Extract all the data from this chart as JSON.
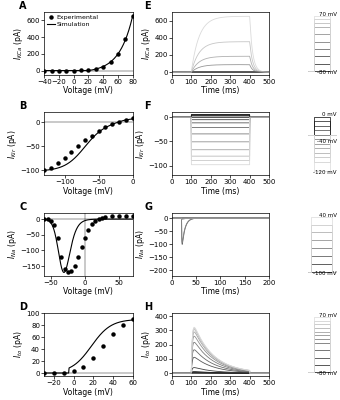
{
  "A": {
    "xlabel": "Voltage (mV)",
    "ylabel": "$I_{KCa}$ (pA)",
    "xlim": [
      -40,
      80
    ],
    "ylim": [
      -50,
      700
    ],
    "yticks": [
      0,
      200,
      400,
      600
    ],
    "xticks": [
      -40,
      -20,
      0,
      20,
      40,
      60,
      80
    ],
    "exp_x": [
      -40,
      -30,
      -20,
      -10,
      0,
      10,
      20,
      30,
      40,
      50,
      60,
      70,
      80
    ],
    "exp_y": [
      0,
      0,
      0,
      0,
      0,
      2,
      5,
      15,
      40,
      100,
      200,
      380,
      650
    ]
  },
  "B": {
    "xlabel": "Voltage (mV)",
    "ylabel": "$I_{Kir}$ (pA)",
    "xlim": [
      -130,
      0
    ],
    "ylim": [
      -110,
      20
    ],
    "yticks": [
      -100,
      -50,
      0
    ],
    "xticks": [
      -100,
      -50,
      0
    ],
    "exp_x": [
      -130,
      -120,
      -110,
      -100,
      -90,
      -80,
      -70,
      -60,
      -50,
      -40,
      -30,
      -20,
      -10,
      0
    ],
    "exp_y": [
      -100,
      -95,
      -85,
      -75,
      -62,
      -50,
      -38,
      -28,
      -18,
      -10,
      -4,
      0,
      5,
      8
    ]
  },
  "C": {
    "xlabel": "Voltage (mV)",
    "ylabel": "$I_{Na}$ (pA)",
    "xlim": [
      -60,
      70
    ],
    "ylim": [
      -180,
      20
    ],
    "yticks": [
      -150,
      -100,
      -50,
      0
    ],
    "xticks": [
      -50,
      0,
      50
    ],
    "exp_x": [
      -60,
      -55,
      -50,
      -45,
      -40,
      -35,
      -30,
      -25,
      -20,
      -15,
      -10,
      -5,
      0,
      5,
      10,
      15,
      20,
      25,
      30,
      40,
      50,
      60,
      70
    ],
    "exp_y": [
      0,
      0,
      -5,
      -20,
      -60,
      -120,
      -160,
      -170,
      -165,
      -150,
      -120,
      -90,
      -60,
      -35,
      -15,
      -5,
      0,
      5,
      8,
      10,
      10,
      10,
      10
    ]
  },
  "D": {
    "xlabel": "Voltage (mV)",
    "ylabel": "$I_{to}$ (pA)",
    "xlim": [
      -30,
      60
    ],
    "ylim": [
      -5,
      100
    ],
    "yticks": [
      0,
      20,
      40,
      60,
      80,
      100
    ],
    "xticks": [
      -20,
      0,
      20,
      40,
      60
    ],
    "exp_x": [
      -30,
      -20,
      -10,
      0,
      10,
      20,
      30,
      40,
      50,
      60
    ],
    "exp_y": [
      0,
      0,
      0,
      3,
      10,
      25,
      45,
      65,
      80,
      90
    ]
  },
  "E": {
    "xlabel": "Time (ms)",
    "ylabel": "$I_{KCa}$ (pA)",
    "xlim": [
      0,
      500
    ],
    "ylim": [
      -30,
      700
    ],
    "yticks": [
      0,
      200,
      400,
      600
    ],
    "xticks": [
      0,
      100,
      200,
      300,
      400,
      500
    ],
    "pulse_start": 100,
    "pulse_end": 400,
    "voltage_steps": [
      -80,
      -60,
      -40,
      -20,
      0,
      20,
      40,
      50,
      60,
      70
    ],
    "v_hold": -80,
    "label_top": "70 mV",
    "label_bot": "-80 mV"
  },
  "F": {
    "xlabel": "Time (ms)",
    "ylabel": "$I_{Kir}$ (pA)",
    "xlim": [
      0,
      500
    ],
    "ylim": [
      -120,
      10
    ],
    "yticks": [
      -100,
      -50,
      0
    ],
    "xticks": [
      0,
      100,
      200,
      300,
      400,
      500
    ],
    "pulse_start": 100,
    "pulse_end": 400,
    "v_hold": -40,
    "voltage_steps": [
      0,
      -10,
      -20,
      -30,
      -40,
      -50,
      -60,
      -70,
      -80,
      -90,
      -100,
      -120
    ],
    "label_top": "0 mV",
    "label_mid": "-40 mV",
    "label_bot": "-120 mV"
  },
  "G": {
    "xlabel": "Time (ms)",
    "ylabel": "$I_{Na}$ (pA)",
    "xlim": [
      0,
      200
    ],
    "ylim": [
      -220,
      20
    ],
    "yticks": [
      -200,
      -150,
      -100,
      -50,
      0
    ],
    "xticks": [
      0,
      50,
      100,
      150,
      200
    ],
    "pulse_start": 20,
    "pulse_end": 170,
    "v_hold": -100,
    "voltage_steps": [
      -100,
      -80,
      -60,
      -40,
      -20,
      0,
      20,
      40
    ],
    "label_top": "40 mV",
    "label_bot": "-100 mV"
  },
  "H": {
    "xlabel": "Time (ms)",
    "ylabel": "$I_{to}$ (pA)",
    "xlim": [
      0,
      500
    ],
    "ylim": [
      -20,
      420
    ],
    "yticks": [
      0,
      100,
      200,
      300,
      400
    ],
    "xticks": [
      0,
      100,
      200,
      300,
      400,
      500
    ],
    "pulse_start": 100,
    "pulse_end": 400,
    "v_hold": -80,
    "voltage_steps": [
      -80,
      -60,
      -40,
      -20,
      0,
      10,
      20,
      30,
      40,
      50,
      60,
      70
    ],
    "label_top": "70 mV",
    "label_bot": "-80 mV"
  }
}
